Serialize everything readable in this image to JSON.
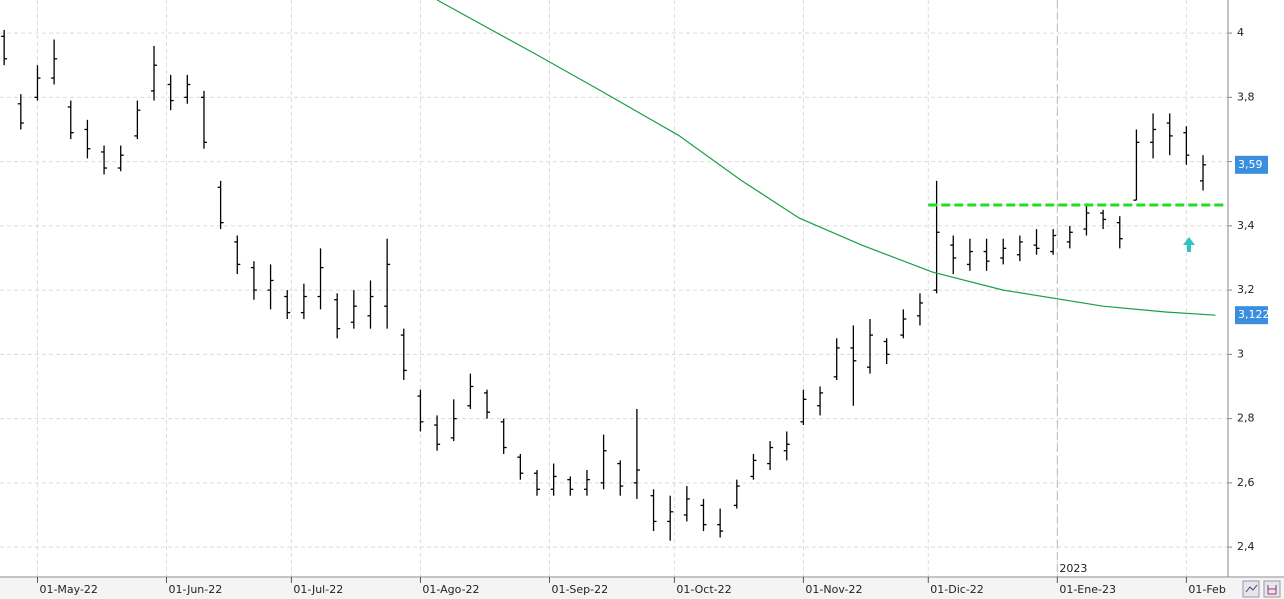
{
  "chart_data": {
    "type": "ohlc",
    "color": "#000000",
    "grid": true,
    "x": [
      "2022-04-23",
      "2022-04-27",
      "2022-05-01",
      "2022-05-05",
      "2022-05-09",
      "2022-05-13",
      "2022-05-17",
      "2022-05-21",
      "2022-05-25",
      "2022-05-29",
      "2022-06-02",
      "2022-06-06",
      "2022-06-10",
      "2022-06-14",
      "2022-06-18",
      "2022-06-22",
      "2022-06-26",
      "2022-06-30",
      "2022-07-04",
      "2022-07-08",
      "2022-07-12",
      "2022-07-16",
      "2022-07-20",
      "2022-07-24",
      "2022-07-28",
      "2022-08-01",
      "2022-08-05",
      "2022-08-09",
      "2022-08-13",
      "2022-08-17",
      "2022-08-21",
      "2022-08-25",
      "2022-08-29",
      "2022-09-02",
      "2022-09-06",
      "2022-09-10",
      "2022-09-14",
      "2022-09-18",
      "2022-09-22",
      "2022-09-26",
      "2022-09-30",
      "2022-10-04",
      "2022-10-08",
      "2022-10-12",
      "2022-10-16",
      "2022-10-20",
      "2022-10-24",
      "2022-10-28",
      "2022-11-01",
      "2022-11-05",
      "2022-11-09",
      "2022-11-13",
      "2022-11-17",
      "2022-11-21",
      "2022-11-25",
      "2022-11-29",
      "2022-12-03",
      "2022-12-07",
      "2022-12-11",
      "2022-12-15",
      "2022-12-19",
      "2022-12-23",
      "2022-12-27",
      "2022-12-31",
      "2023-01-04",
      "2023-01-08",
      "2023-01-12",
      "2023-01-16",
      "2023-01-20",
      "2023-01-24",
      "2023-01-28",
      "2023-02-01",
      "2023-02-05"
    ],
    "open": [
      3.99,
      3.78,
      3.8,
      3.86,
      3.77,
      3.7,
      3.63,
      3.58,
      3.68,
      3.82,
      3.84,
      3.8,
      3.8,
      3.52,
      3.35,
      3.27,
      3.2,
      3.18,
      3.13,
      3.18,
      3.17,
      3.1,
      3.12,
      3.15,
      3.06,
      2.87,
      2.78,
      2.74,
      2.84,
      2.88,
      2.79,
      2.68,
      2.63,
      2.58,
      2.61,
      2.58,
      2.6,
      2.66,
      2.6,
      2.56,
      2.48,
      2.5,
      2.53,
      2.47,
      2.53,
      2.62,
      2.66,
      2.7,
      2.79,
      2.84,
      2.93,
      3.02,
      2.96,
      3.04,
      3.06,
      3.12,
      3.2,
      3.34,
      3.28,
      3.32,
      3.3,
      3.31,
      3.34,
      3.32,
      3.35,
      3.39,
      3.44,
      3.41,
      3.48,
      3.66,
      3.72,
      3.69,
      3.54
    ],
    "high": [
      4.01,
      3.81,
      3.9,
      3.98,
      3.79,
      3.73,
      3.65,
      3.65,
      3.79,
      3.96,
      3.87,
      3.87,
      3.82,
      3.54,
      3.37,
      3.29,
      3.28,
      3.2,
      3.22,
      3.33,
      3.19,
      3.2,
      3.23,
      3.36,
      3.08,
      2.89,
      2.81,
      2.86,
      2.94,
      2.89,
      2.8,
      2.69,
      2.64,
      2.66,
      2.62,
      2.64,
      2.75,
      2.67,
      2.83,
      2.58,
      2.56,
      2.59,
      2.55,
      2.52,
      2.61,
      2.69,
      2.73,
      2.76,
      2.89,
      2.9,
      3.05,
      3.09,
      3.11,
      3.05,
      3.14,
      3.19,
      3.54,
      3.37,
      3.36,
      3.36,
      3.36,
      3.37,
      3.39,
      3.39,
      3.4,
      3.47,
      3.45,
      3.43,
      3.7,
      3.75,
      3.75,
      3.71,
      3.62
    ],
    "low": [
      3.9,
      3.7,
      3.79,
      3.84,
      3.67,
      3.61,
      3.56,
      3.57,
      3.67,
      3.79,
      3.76,
      3.78,
      3.64,
      3.39,
      3.25,
      3.17,
      3.14,
      3.11,
      3.11,
      3.14,
      3.05,
      3.08,
      3.08,
      3.08,
      2.92,
      2.76,
      2.7,
      2.73,
      2.83,
      2.8,
      2.69,
      2.61,
      2.56,
      2.56,
      2.56,
      2.56,
      2.58,
      2.56,
      2.55,
      2.45,
      2.42,
      2.48,
      2.45,
      2.43,
      2.52,
      2.61,
      2.64,
      2.67,
      2.78,
      2.81,
      2.92,
      2.84,
      2.94,
      2.97,
      3.05,
      3.09,
      3.19,
      3.25,
      3.26,
      3.26,
      3.28,
      3.29,
      3.31,
      3.31,
      3.33,
      3.37,
      3.39,
      3.33,
      3.48,
      3.61,
      3.62,
      3.59,
      3.51
    ],
    "close": [
      3.92,
      3.72,
      3.86,
      3.92,
      3.69,
      3.64,
      3.58,
      3.62,
      3.76,
      3.9,
      3.79,
      3.84,
      3.66,
      3.41,
      3.28,
      3.2,
      3.23,
      3.13,
      3.18,
      3.27,
      3.08,
      3.15,
      3.18,
      3.28,
      2.95,
      2.79,
      2.72,
      2.8,
      2.9,
      2.82,
      2.71,
      2.63,
      2.58,
      2.62,
      2.58,
      2.61,
      2.7,
      2.59,
      2.64,
      2.48,
      2.51,
      2.55,
      2.47,
      2.45,
      2.59,
      2.67,
      2.71,
      2.72,
      2.86,
      2.88,
      3.02,
      2.98,
      3.06,
      3.0,
      3.11,
      3.16,
      3.38,
      3.3,
      3.32,
      3.29,
      3.33,
      3.35,
      3.33,
      3.37,
      3.38,
      3.44,
      3.42,
      3.36,
      3.66,
      3.7,
      3.68,
      3.62,
      3.59
    ],
    "moving_average": {
      "color": "#1a9e4a",
      "x": [
        "2022-08-05",
        "2022-08-29",
        "2022-09-13",
        "2022-10-02",
        "2022-10-17",
        "2022-10-31",
        "2022-11-15",
        "2022-12-02",
        "2022-12-19",
        "2023-01-12",
        "2023-01-27",
        "2023-02-08"
      ],
      "values": [
        4.103,
        3.932,
        3.823,
        3.682,
        3.542,
        3.424,
        3.34,
        3.256,
        3.2,
        3.15,
        3.132,
        3.122
      ],
      "last": {
        "value": 3.122,
        "label": "3,122"
      }
    },
    "last_price": {
      "value": 3.59,
      "label": "3,59",
      "color": "#3a8ee0"
    },
    "resistance": {
      "value": 3.465,
      "x": [
        "2022-12-01",
        "2023-02-10"
      ],
      "color": "#22dd22"
    },
    "year_marker": {
      "value": "2023-01-01",
      "label": "2023"
    },
    "xlim": [
      "2022-04-22",
      "2023-02-11"
    ],
    "xticks": [
      {
        "value": "2022-05-01",
        "label": "01-May-22"
      },
      {
        "value": "2022-06-01",
        "label": "01-Jun-22"
      },
      {
        "value": "2022-07-01",
        "label": "01-Jul-22"
      },
      {
        "value": "2022-08-01",
        "label": "01-Ago-22"
      },
      {
        "value": "2022-09-01",
        "label": "01-Sep-22"
      },
      {
        "value": "2022-10-01",
        "label": "01-Oct-22"
      },
      {
        "value": "2022-11-01",
        "label": "01-Nov-22"
      },
      {
        "value": "2022-12-01",
        "label": "01-Dic-22"
      },
      {
        "value": "2023-01-01",
        "label": "01-Ene-23"
      },
      {
        "value": "2023-02-01",
        "label": "01-Feb"
      }
    ],
    "ylim": [
      2.307,
      4.103
    ],
    "yticks": [
      {
        "value": 2.4,
        "label": "2,4"
      },
      {
        "value": 2.6,
        "label": "2,6"
      },
      {
        "value": 2.8,
        "label": "2,8"
      },
      3,
      {
        "value": 3.2,
        "label": "3,2"
      },
      {
        "value": 3.4,
        "label": "3,4"
      },
      {
        "value": 3.6,
        "label": "3,6"
      },
      {
        "value": 3.8,
        "label": "3,8"
      },
      4
    ]
  }
}
